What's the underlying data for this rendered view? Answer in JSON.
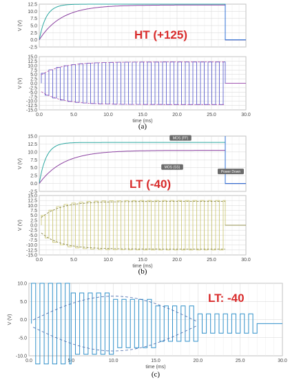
{
  "chart_data": [
    {
      "id": "a-top",
      "type": "line",
      "caption": "(a)",
      "xlim": [
        0,
        30
      ],
      "ylim": [
        -2.5,
        12.5
      ],
      "yticks": [
        "12.5",
        "10.0",
        "7.5",
        "5.0",
        "2.5",
        "0.0",
        "-2.5"
      ],
      "ylabel": "V (V)",
      "xlabel": "",
      "annotation": "HT (+125)",
      "tags": [],
      "series": [
        {
          "color": "#2aa7a0",
          "shape": "rc",
          "params": {
            "final": 12.5,
            "tau": 1.0,
            "t_off": 27
          }
        },
        {
          "color": "#8a3fa0",
          "shape": "rc",
          "params": {
            "final": 12.2,
            "tau": 3.2,
            "t_off": 27
          }
        },
        {
          "color": "#2d6fd6",
          "shape": "step_after",
          "params": {
            "t_off": 27,
            "final": 0
          }
        }
      ]
    },
    {
      "id": "a-bot",
      "type": "line",
      "xlim": [
        0,
        30
      ],
      "ylim": [
        -15,
        15
      ],
      "yticks": [
        "15.0",
        "12.5",
        "10.0",
        "7.5",
        "5.0",
        "2.5",
        "0.0",
        "-2.5",
        "-5.0",
        "-7.5",
        "-10.0",
        "-12.5",
        "-15.0"
      ],
      "xticks": [
        "0.0",
        "5.0",
        "10.0",
        "15.0",
        "20.0",
        "25.0",
        "30.0"
      ],
      "ylabel": "V (V)",
      "xlabel": "time (ms)",
      "series": [
        {
          "color": "#4a4ec9",
          "shape": "square",
          "params": {
            "amp": 12,
            "amp_start": 5,
            "tau": 3,
            "period": 1.1,
            "t_off": 27
          }
        },
        {
          "color": "#b04aa6",
          "shape": "env",
          "params": {
            "amp": 12,
            "amp_start": 4,
            "tau": 3,
            "t_off": 27
          }
        }
      ]
    },
    {
      "id": "b-top",
      "type": "line",
      "caption": "(b)",
      "xlim": [
        0,
        30
      ],
      "ylim": [
        -2.5,
        15
      ],
      "yticks": [
        "15.0",
        "12.5",
        "10.0",
        "7.5",
        "5.0",
        "2.5",
        "0.0",
        "-2.5"
      ],
      "ylabel": "V (V)",
      "xlabel": "",
      "annotation": "LT (-40)",
      "tags": [
        {
          "text": "MOS (FF)",
          "x": 20.5,
          "y": 14.2
        },
        {
          "text": "MOS (SS)",
          "x": 19.3,
          "y": 5.0
        },
        {
          "text": "Power Down",
          "x": 27.8,
          "y": 3.6
        }
      ],
      "series": [
        {
          "color": "#2aa7a0",
          "shape": "rc",
          "params": {
            "final": 13.0,
            "tau": 1.0,
            "t_off": 27
          }
        },
        {
          "color": "#8a3fa0",
          "shape": "rc",
          "params": {
            "final": 10.5,
            "tau": 3.5,
            "t_off": 27
          }
        },
        {
          "color": "#2d6fd6",
          "shape": "step_after",
          "params": {
            "t_off": 27,
            "final": 0
          }
        }
      ]
    },
    {
      "id": "b-bot",
      "type": "line",
      "xlim": [
        0,
        30
      ],
      "ylim": [
        -15,
        15
      ],
      "yticks": [
        "15.0",
        "12.5",
        "10.0",
        "7.5",
        "5.0",
        "2.5",
        "0.0",
        "-2.5",
        "-5.0",
        "-7.5",
        "-10.0",
        "-12.5",
        "-15.0"
      ],
      "xticks": [
        "0.0",
        "5.0",
        "10.0",
        "15.0",
        "20.0",
        "25.0",
        "30.0"
      ],
      "ylabel": "V (V)",
      "xlabel": "time (ms)",
      "series": [
        {
          "color": "#c9c46a",
          "shape": "square",
          "params": {
            "amp": 12.5,
            "amp_start": 4,
            "tau": 2.5,
            "period": 1.1,
            "t_off": 27
          }
        },
        {
          "color": "#7d7a38",
          "shape": "env",
          "params": {
            "amp": 12,
            "amp_start": 3,
            "tau": 2.8,
            "t_off": 27
          }
        }
      ]
    },
    {
      "id": "c",
      "type": "line",
      "caption": "(c)",
      "xlim": [
        0,
        30
      ],
      "ylim": [
        -10,
        12.5
      ],
      "yticks": [
        "10.0",
        "5.0",
        "0.0",
        "-5.0",
        "-10.0"
      ],
      "xticks": [
        "0.0",
        "5.0",
        "10.0",
        "15.0",
        "20.0",
        "25.0",
        "30.0"
      ],
      "ylabel": "V (V)",
      "xlabel": "time (ms)",
      "annotation": "LT: -40",
      "tags": [],
      "series": [
        {
          "color": "#2f8fc9",
          "shape": "decaying_square",
          "params": {
            "segments": [
              [
                0,
                5,
                12.5
              ],
              [
                5,
                10,
                9.5
              ],
              [
                10,
                15,
                7.5
              ],
              [
                15,
                20,
                5.5
              ],
              [
                20,
                27,
                3.0
              ]
            ],
            "period": 1.0,
            "t_off": 27
          }
        },
        {
          "color": "#4466aa",
          "shape": "env_dash",
          "params": {
            "amp": 8,
            "t_off": 27
          }
        }
      ]
    }
  ]
}
